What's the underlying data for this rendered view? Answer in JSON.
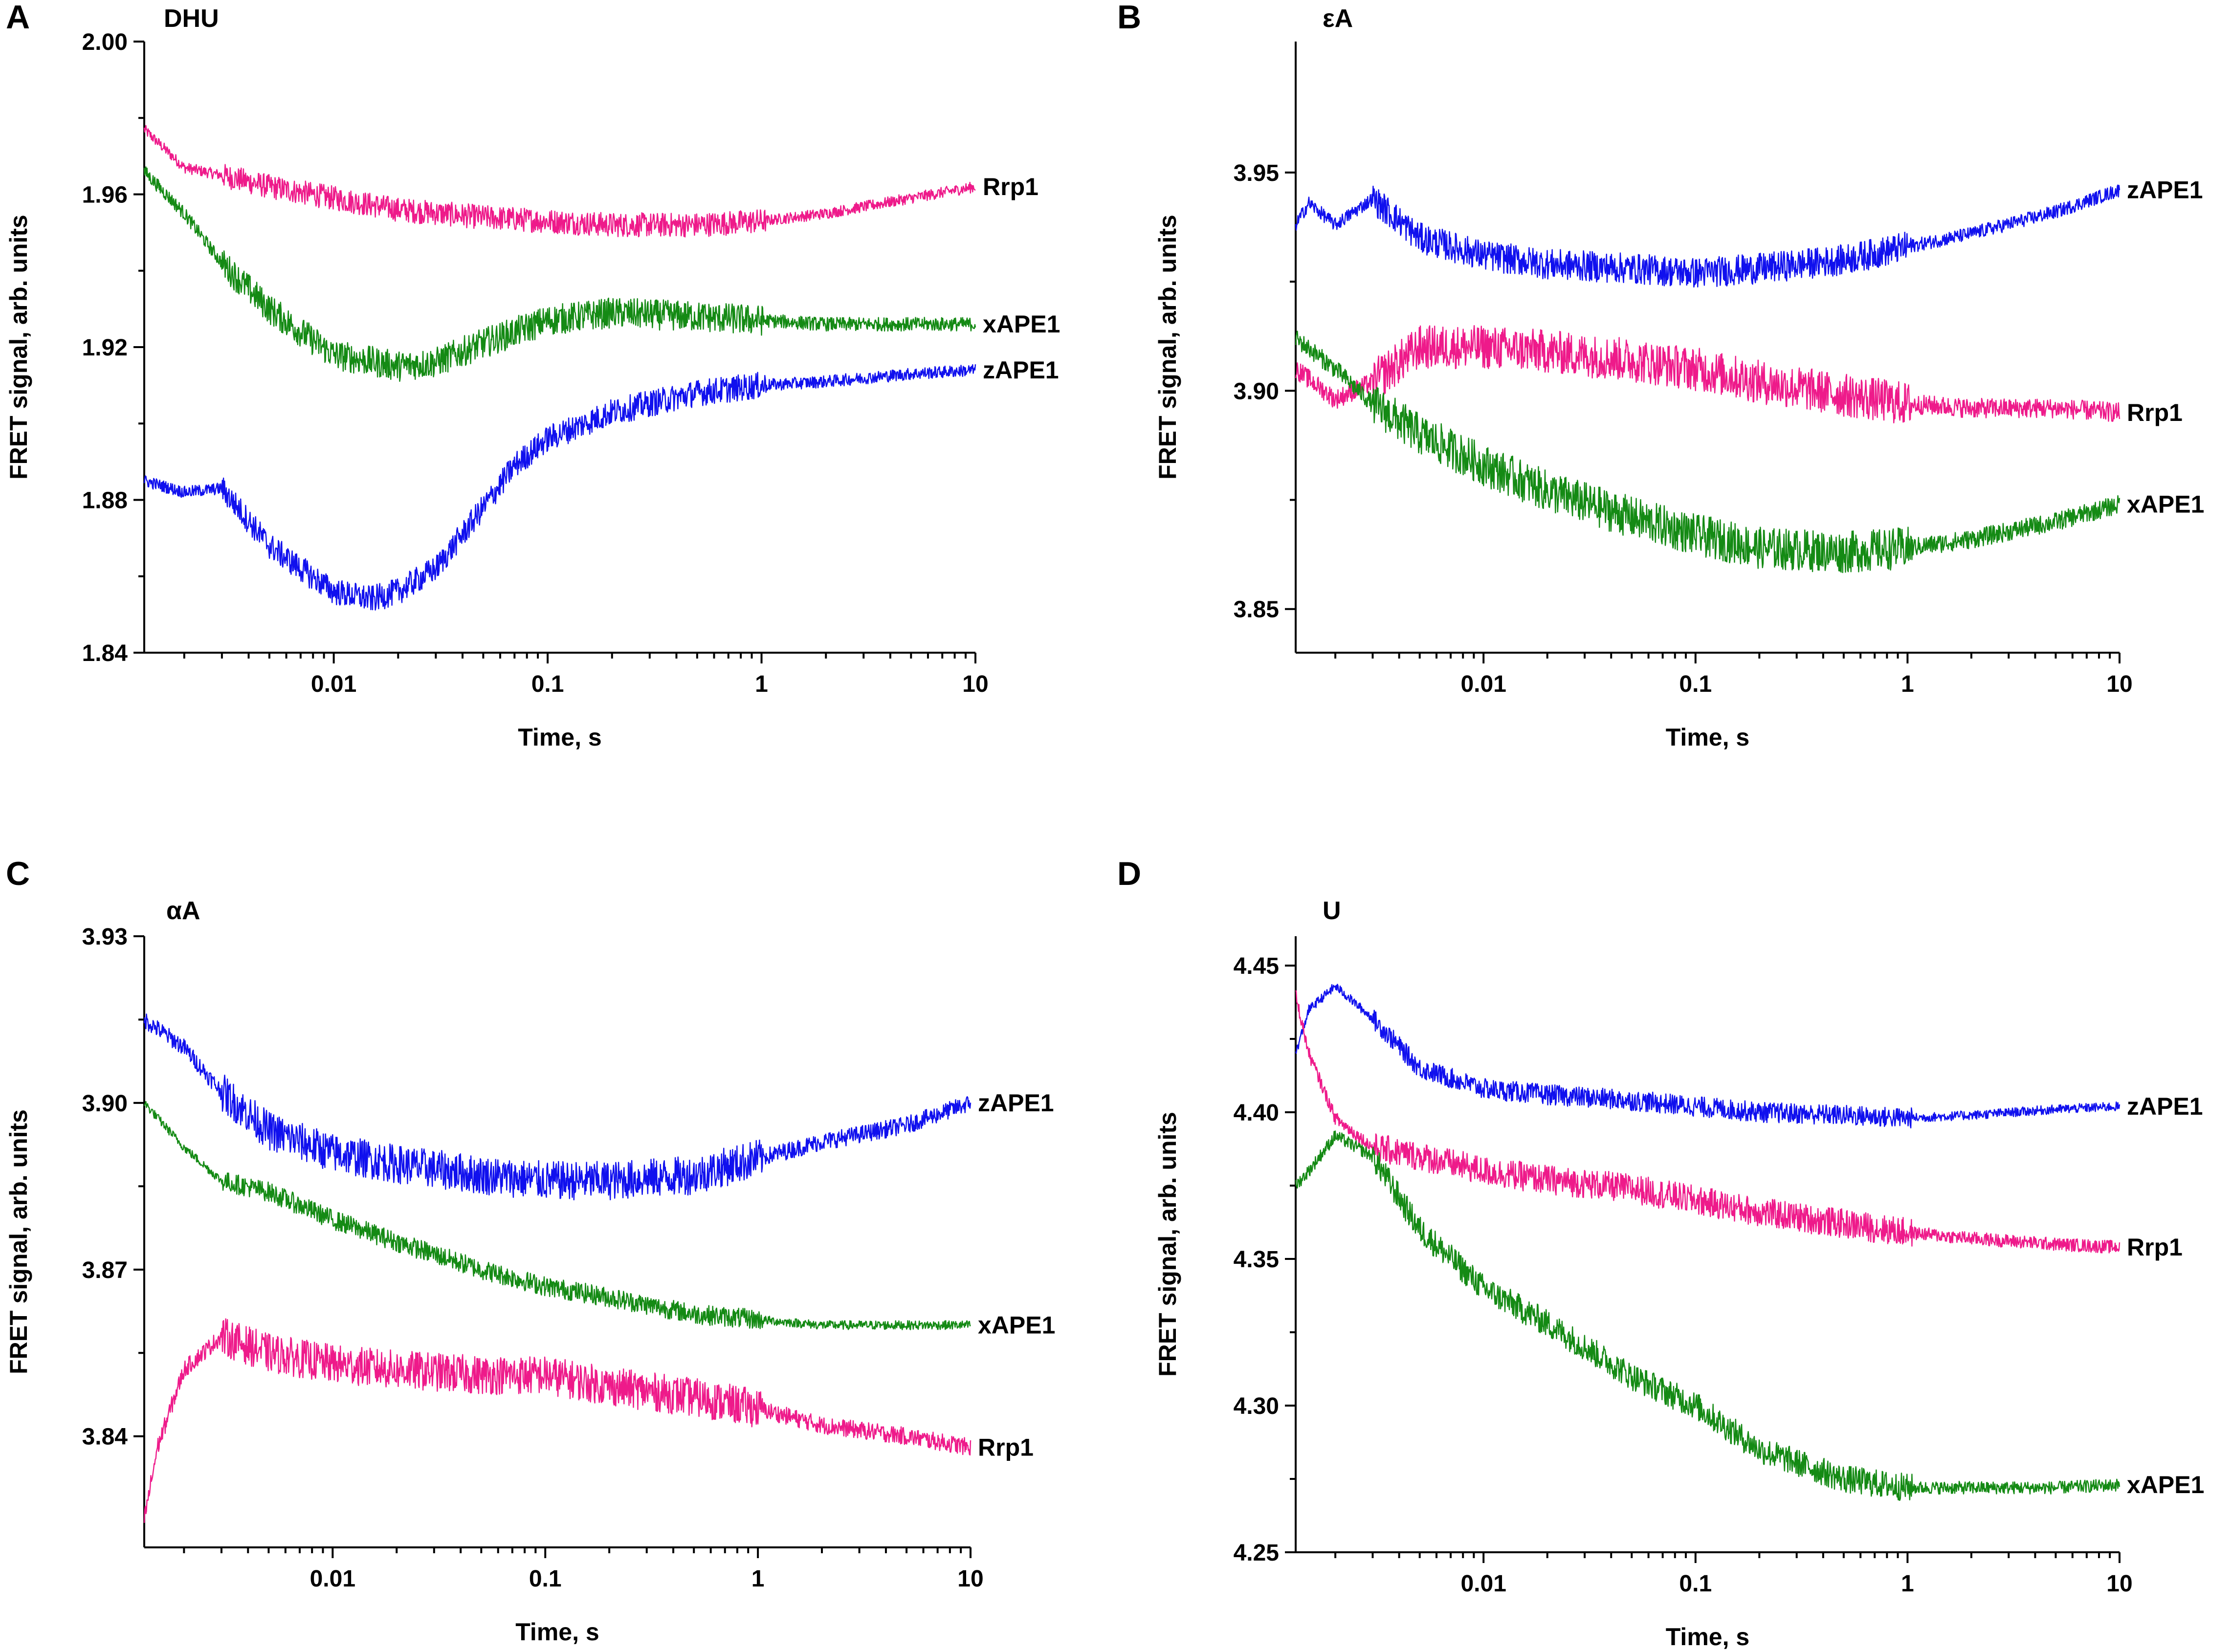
{
  "figure_title": "FRET kinetic traces",
  "colors": {
    "zAPE1": "#1010ee",
    "xAPE1": "#148a14",
    "Rrp1": "#ee1a8a",
    "axis": "#000000"
  },
  "chart_data": [
    {
      "panel": "A",
      "title": "DHU",
      "type": "line",
      "xlabel": "Time, s",
      "ylabel": "FRET signal, arb. units",
      "xscale": "log",
      "xlim": [
        0.0013,
        10
      ],
      "ylim": [
        1.84,
        2.0
      ],
      "xticks": [
        0.01,
        0.1,
        1,
        10
      ],
      "xtick_labels": [
        "0.01",
        "0.1",
        "1",
        "10"
      ],
      "yticks": [
        1.84,
        1.88,
        1.92,
        1.96,
        2.0
      ],
      "ytick_labels": [
        "1.84",
        "1.88",
        "1.92",
        "1.96",
        "2.00"
      ],
      "series": [
        {
          "name": "Rrp1",
          "label": "Rrp1",
          "color": "#ee1a8a",
          "noise": 0.0032,
          "x": [
            0.0013,
            0.002,
            0.003,
            0.005,
            0.01,
            0.02,
            0.05,
            0.1,
            0.2,
            0.5,
            1,
            2,
            5,
            10
          ],
          "y": [
            1.977,
            1.967,
            1.965,
            1.962,
            1.959,
            1.956,
            1.954,
            1.953,
            1.952,
            1.952,
            1.953,
            1.955,
            1.959,
            1.962
          ]
        },
        {
          "name": "xAPE1",
          "label": "xAPE1",
          "color": "#148a14",
          "noise": 0.004,
          "x": [
            0.0013,
            0.002,
            0.003,
            0.005,
            0.007,
            0.01,
            0.02,
            0.03,
            0.05,
            0.1,
            0.2,
            0.5,
            1,
            2,
            5,
            10
          ],
          "y": [
            1.966,
            1.955,
            1.942,
            1.93,
            1.924,
            1.918,
            1.915,
            1.916,
            1.921,
            1.927,
            1.929,
            1.928,
            1.927,
            1.926,
            1.926,
            1.926
          ]
        },
        {
          "name": "zAPE1",
          "label": "zAPE1",
          "color": "#1010ee",
          "noise": 0.0035,
          "x": [
            0.0013,
            0.002,
            0.003,
            0.005,
            0.007,
            0.01,
            0.015,
            0.02,
            0.03,
            0.05,
            0.07,
            0.1,
            0.2,
            0.5,
            1,
            2,
            5,
            10
          ],
          "y": [
            1.885,
            1.882,
            1.883,
            1.868,
            1.862,
            1.856,
            1.854,
            1.856,
            1.862,
            1.878,
            1.889,
            1.896,
            1.903,
            1.908,
            1.91,
            1.911,
            1.913,
            1.914
          ]
        }
      ]
    },
    {
      "panel": "B",
      "title": "εA",
      "type": "line",
      "xlabel": "Time, s",
      "ylabel": "FRET signal, arb. units",
      "xscale": "log",
      "xlim": [
        0.0013,
        10
      ],
      "ylim": [
        3.84,
        3.98
      ],
      "xticks": [
        0.01,
        0.1,
        1,
        10
      ],
      "xtick_labels": [
        "0.01",
        "0.1",
        "1",
        "10"
      ],
      "yticks": [
        3.85,
        3.9,
        3.95
      ],
      "ytick_labels": [
        "3.85",
        "3.90",
        "3.95"
      ],
      "series": [
        {
          "name": "zAPE1",
          "label": "zAPE1",
          "color": "#1010ee",
          "noise": 0.0035,
          "x": [
            0.0013,
            0.0015,
            0.002,
            0.003,
            0.005,
            0.01,
            0.02,
            0.05,
            0.1,
            0.2,
            0.5,
            1,
            2,
            5,
            10
          ],
          "y": [
            3.938,
            3.943,
            3.938,
            3.944,
            3.935,
            3.931,
            3.929,
            3.928,
            3.927,
            3.928,
            3.93,
            3.933,
            3.936,
            3.941,
            3.946
          ]
        },
        {
          "name": "Rrp1",
          "label": "Rrp1",
          "color": "#ee1a8a",
          "noise": 0.005,
          "x": [
            0.0013,
            0.002,
            0.003,
            0.005,
            0.01,
            0.02,
            0.05,
            0.1,
            0.2,
            0.5,
            1,
            2,
            5,
            10
          ],
          "y": [
            3.905,
            3.898,
            3.902,
            3.91,
            3.91,
            3.909,
            3.907,
            3.905,
            3.902,
            3.899,
            3.897,
            3.896,
            3.896,
            3.895
          ]
        },
        {
          "name": "xAPE1",
          "label": "xAPE1",
          "color": "#148a14",
          "noise": 0.0048,
          "x": [
            0.0013,
            0.002,
            0.003,
            0.005,
            0.01,
            0.02,
            0.05,
            0.1,
            0.2,
            0.5,
            1,
            2,
            5,
            10
          ],
          "y": [
            3.912,
            3.905,
            3.897,
            3.89,
            3.883,
            3.877,
            3.871,
            3.867,
            3.864,
            3.863,
            3.864,
            3.866,
            3.87,
            3.874
          ]
        }
      ]
    },
    {
      "panel": "C",
      "title": "αA",
      "type": "line",
      "xlabel": "Time, s",
      "ylabel": "FRET signal, arb. units",
      "xscale": "log",
      "xlim": [
        0.0013,
        10
      ],
      "ylim": [
        3.82,
        3.93
      ],
      "xticks": [
        0.01,
        0.1,
        1,
        10
      ],
      "xtick_labels": [
        "0.01",
        "0.1",
        "1",
        "10"
      ],
      "yticks": [
        3.84,
        3.87,
        3.9,
        3.93
      ],
      "ytick_labels": [
        "3.84",
        "3.87",
        "3.90",
        "3.93"
      ],
      "series": [
        {
          "name": "zAPE1",
          "label": "zAPE1",
          "color": "#1010ee",
          "noise": 0.0035,
          "x": [
            0.0013,
            0.002,
            0.003,
            0.005,
            0.01,
            0.02,
            0.05,
            0.1,
            0.2,
            0.5,
            1,
            2,
            5,
            10
          ],
          "y": [
            3.915,
            3.91,
            3.902,
            3.895,
            3.891,
            3.889,
            3.887,
            3.886,
            3.886,
            3.887,
            3.89,
            3.893,
            3.896,
            3.9
          ]
        },
        {
          "name": "xAPE1",
          "label": "xAPE1",
          "color": "#148a14",
          "noise": 0.0018,
          "x": [
            0.0013,
            0.002,
            0.003,
            0.005,
            0.01,
            0.02,
            0.05,
            0.1,
            0.2,
            0.5,
            1,
            2,
            5,
            10
          ],
          "y": [
            3.9,
            3.892,
            3.886,
            3.884,
            3.879,
            3.875,
            3.87,
            3.867,
            3.865,
            3.862,
            3.861,
            3.86,
            3.86,
            3.86
          ]
        },
        {
          "name": "Rrp1",
          "label": "Rrp1",
          "color": "#ee1a8a",
          "noise": 0.0035,
          "x": [
            0.0013,
            0.0015,
            0.002,
            0.003,
            0.005,
            0.01,
            0.02,
            0.05,
            0.1,
            0.2,
            0.5,
            1,
            2,
            5,
            10
          ],
          "y": [
            3.825,
            3.838,
            3.852,
            3.858,
            3.855,
            3.853,
            3.852,
            3.851,
            3.851,
            3.849,
            3.847,
            3.845,
            3.842,
            3.84,
            3.838
          ]
        }
      ]
    },
    {
      "panel": "D",
      "title": "U",
      "type": "line",
      "xlabel": "Time, s",
      "ylabel": "FRET signal, arb. units",
      "xscale": "log",
      "xlim": [
        0.0013,
        10
      ],
      "ylim": [
        4.25,
        4.46
      ],
      "xticks": [
        0.01,
        0.1,
        1,
        10
      ],
      "xtick_labels": [
        "0.01",
        "0.1",
        "1",
        "10"
      ],
      "yticks": [
        4.25,
        4.3,
        4.35,
        4.4,
        4.45
      ],
      "ytick_labels": [
        "4.25",
        "4.30",
        "4.35",
        "4.40",
        "4.45"
      ],
      "series": [
        {
          "name": "zAPE1",
          "label": "zAPE1",
          "color": "#1010ee",
          "noise": 0.0035,
          "x": [
            0.0013,
            0.0015,
            0.002,
            0.003,
            0.005,
            0.01,
            0.02,
            0.05,
            0.1,
            0.2,
            0.5,
            1,
            2,
            5,
            10
          ],
          "y": [
            4.42,
            4.435,
            4.443,
            4.432,
            4.415,
            4.408,
            4.406,
            4.404,
            4.402,
            4.4,
            4.399,
            4.398,
            4.399,
            4.401,
            4.402
          ]
        },
        {
          "name": "Rrp1",
          "label": "Rrp1",
          "color": "#ee1a8a",
          "noise": 0.005,
          "x": [
            0.0013,
            0.0015,
            0.002,
            0.003,
            0.005,
            0.01,
            0.02,
            0.05,
            0.1,
            0.2,
            0.5,
            1,
            2,
            5,
            10
          ],
          "y": [
            4.44,
            4.42,
            4.398,
            4.388,
            4.385,
            4.38,
            4.377,
            4.374,
            4.37,
            4.366,
            4.362,
            4.359,
            4.357,
            4.355,
            4.354
          ]
        },
        {
          "name": "xAPE1",
          "label": "xAPE1",
          "color": "#148a14",
          "noise": 0.0048,
          "x": [
            0.0013,
            0.0015,
            0.002,
            0.003,
            0.005,
            0.01,
            0.02,
            0.05,
            0.1,
            0.2,
            0.5,
            1,
            2,
            5,
            10
          ],
          "y": [
            4.375,
            4.38,
            4.392,
            4.385,
            4.36,
            4.34,
            4.328,
            4.31,
            4.3,
            4.285,
            4.275,
            4.272,
            4.272,
            4.272,
            4.273
          ]
        }
      ]
    }
  ]
}
